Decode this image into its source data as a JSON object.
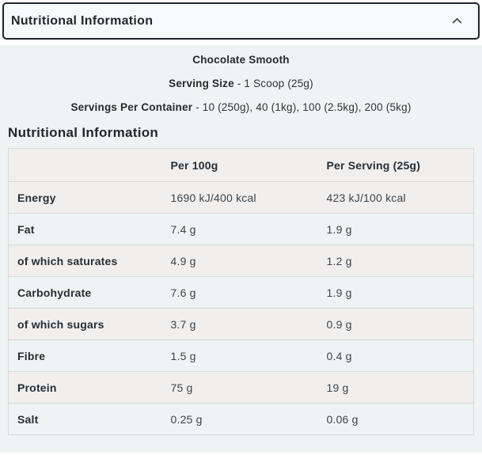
{
  "accordion": {
    "title": "Nutritional Information",
    "state": "expanded"
  },
  "intro": {
    "flavour": "Chocolate Smooth",
    "serving_size_label": "Serving Size",
    "serving_size_value": "- 1 Scoop (25g)",
    "servings_per_container_label": "Servings Per Container",
    "servings_per_container_value": "- 10 (250g), 40 (1kg), 100 (2.5kg), 200 (5kg)"
  },
  "section": {
    "heading": "Nutritional Information"
  },
  "table": {
    "columns": {
      "nutrient": "",
      "per_100g": "Per 100g",
      "per_serving": "Per Serving (25g)"
    },
    "rows": [
      {
        "label": "Energy",
        "per_100g": "1690 kJ/400 kcal",
        "per_serving": "423 kJ/100 kcal"
      },
      {
        "label": "Fat",
        "per_100g": "7.4 g",
        "per_serving": "1.9 g"
      },
      {
        "label": "of which saturates",
        "per_100g": "4.9 g",
        "per_serving": "1.2 g"
      },
      {
        "label": "Carbohydrate",
        "per_100g": "7.6 g",
        "per_serving": "1.9 g"
      },
      {
        "label": "of which sugars",
        "per_100g": "3.7 g",
        "per_serving": "0.9 g"
      },
      {
        "label": "Fibre",
        "per_100g": "1.5 g",
        "per_serving": "0.4 g"
      },
      {
        "label": "Protein",
        "per_100g": "75 g",
        "per_serving": "19 g"
      },
      {
        "label": "Salt",
        "per_100g": "0.25 g",
        "per_serving": "0.06 g"
      }
    ]
  },
  "icons": {
    "chevron": "chevron-up-icon"
  },
  "colors": {
    "accent_border": "#1d242b",
    "panel_bg": "#edf4f3",
    "row_alt_bg": "#f1efed",
    "row_border": "#d4d9d9",
    "text_dark": "#1f262d",
    "text_body": "#3c444c"
  }
}
